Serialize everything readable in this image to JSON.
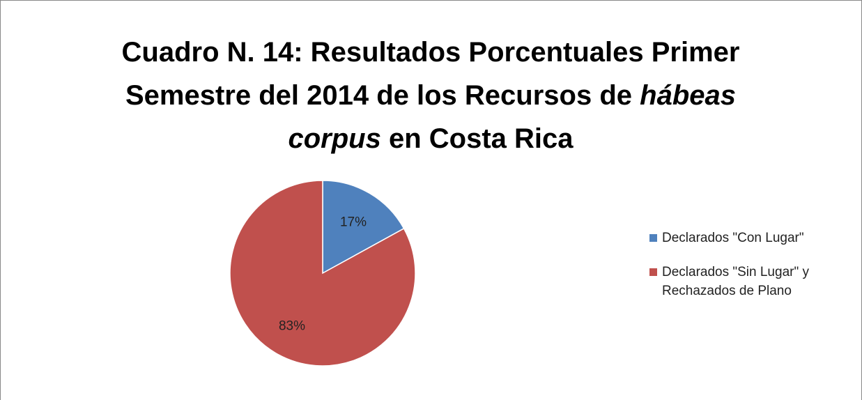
{
  "chart_data": {
    "type": "pie",
    "title": [
      [
        {
          "text": "Cuadro N. 14: Resultados Porcentuales Primer",
          "italic": false
        }
      ],
      [
        {
          "text": "Semestre del 2014 de los Recursos de ",
          "italic": false
        },
        {
          "text": "hábeas",
          "italic": true
        }
      ],
      [
        {
          "text": "corpus",
          "italic": true
        },
        {
          "text": " en Costa Rica",
          "italic": false
        }
      ]
    ],
    "categories": [
      "Declarados \"Con Lugar\"",
      "Declarados \"Sin Lugar\" y Rechazados de Plano"
    ],
    "values": [
      17,
      83
    ],
    "value_labels": [
      "17%",
      "83%"
    ],
    "colors": [
      "#4f81bd",
      "#c0504d"
    ],
    "legend": "right"
  }
}
